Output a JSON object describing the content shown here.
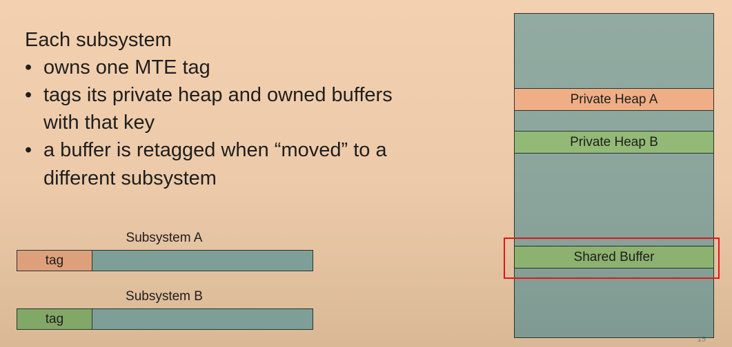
{
  "heading": "Each subsystem",
  "bullets": [
    {
      "marker": "•",
      "lines": [
        "owns one MTE tag"
      ]
    },
    {
      "marker": "•",
      "lines": [
        "tags its private heap and owned buffers",
        "with that key"
      ]
    },
    {
      "marker": "•",
      "lines": [
        "a buffer is retagged when “moved” to a",
        "different subsystem"
      ]
    }
  ],
  "subsystems": [
    {
      "label": "Subsystem A",
      "tag": "tag",
      "tag_color": "#dea07a"
    },
    {
      "label": "Subsystem B",
      "tag": "tag",
      "tag_color": "#82a867"
    }
  ],
  "memory": {
    "regions": [
      {
        "label": "Private Heap A",
        "color": "#efae85"
      },
      {
        "label": "Private Heap B",
        "color": "#93b976"
      },
      {
        "label": "Shared Buffer",
        "color": "#8db16f"
      }
    ],
    "highlight_color": "#e2151b"
  },
  "slide_number": "15"
}
